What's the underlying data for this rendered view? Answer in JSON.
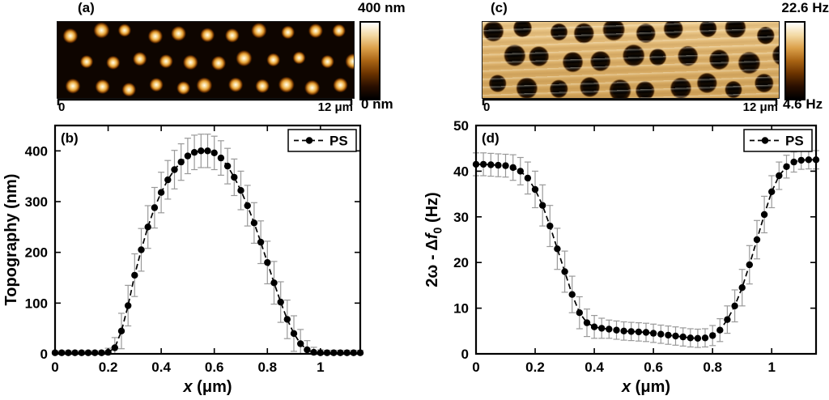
{
  "figure": {
    "panels": {
      "a": {
        "label": "(a)",
        "colorbar_max": "400 nm",
        "colorbar_min": "0 nm",
        "scale_start": "0",
        "scale_end": "12 μm",
        "image_description": "AFM topography image: bright circular PS domes on dark background, quasi-hexagonal array"
      },
      "c": {
        "label": "(c)",
        "colorbar_max": "22.6 Hz",
        "colorbar_min": "4.6 Hz",
        "scale_start": "0",
        "scale_end": "12 μm",
        "image_description": "AFM frequency-shift image: dark circular domains on bright background, quasi-hexagonal array"
      }
    },
    "colormap": [
      "#000000",
      "#2a0f00",
      "#6b3300",
      "#a96414",
      "#dba04a",
      "#f3d9a4",
      "#ffffff"
    ]
  },
  "chart_data": [
    {
      "id": "b",
      "type": "line",
      "panel_label": "(b)",
      "title": "",
      "xlabel_segments": [
        {
          "t": "x",
          "italic": true
        },
        {
          "t": " (μm)"
        }
      ],
      "ylabel_segments": [
        {
          "t": "Topography (nm)"
        }
      ],
      "xlim": [
        0,
        1.15
      ],
      "ylim": [
        0,
        450
      ],
      "xticks": [
        0,
        0.2,
        0.4,
        0.6,
        0.8,
        1
      ],
      "xtick_labels": [
        "0",
        "0.2",
        "0.4",
        "0.6",
        "0.8",
        "1"
      ],
      "yticks": [
        0,
        100,
        200,
        300,
        400
      ],
      "ytick_labels": [
        "0",
        "100",
        "200",
        "300",
        "400"
      ],
      "grid": false,
      "legend": {
        "label": "PS",
        "marker": "filled-circle",
        "line": "dashed",
        "position": "top-right"
      },
      "series": [
        {
          "name": "PS",
          "x": [
            0,
            0.025,
            0.05,
            0.075,
            0.1,
            0.125,
            0.15,
            0.175,
            0.2,
            0.225,
            0.25,
            0.275,
            0.3,
            0.325,
            0.35,
            0.375,
            0.4,
            0.425,
            0.45,
            0.475,
            0.5,
            0.525,
            0.55,
            0.575,
            0.6,
            0.625,
            0.65,
            0.675,
            0.7,
            0.725,
            0.75,
            0.775,
            0.8,
            0.825,
            0.85,
            0.875,
            0.9,
            0.925,
            0.95,
            0.975,
            1,
            1.025,
            1.05,
            1.075,
            1.1,
            1.125,
            1.15
          ],
          "y": [
            2,
            2,
            2,
            2,
            2,
            2,
            2,
            2,
            3,
            12,
            45,
            95,
            155,
            205,
            250,
            288,
            318,
            343,
            363,
            378,
            390,
            397,
            400,
            400,
            396,
            386,
            370,
            348,
            322,
            292,
            258,
            220,
            180,
            140,
            102,
            68,
            40,
            20,
            8,
            3,
            2,
            2,
            2,
            2,
            2,
            2,
            2
          ],
          "yerr": [
            4,
            4,
            4,
            4,
            4,
            4,
            4,
            4,
            8,
            20,
            35,
            40,
            42,
            42,
            42,
            40,
            40,
            38,
            38,
            36,
            35,
            34,
            33,
            33,
            33,
            34,
            35,
            36,
            38,
            40,
            40,
            42,
            42,
            42,
            40,
            38,
            35,
            28,
            18,
            10,
            6,
            5,
            5,
            5,
            5,
            5,
            5
          ]
        }
      ]
    },
    {
      "id": "d",
      "type": "line",
      "panel_label": "(d)",
      "title": "",
      "xlabel_segments": [
        {
          "t": "x",
          "italic": true
        },
        {
          "t": " (μm)"
        }
      ],
      "ylabel_segments": [
        {
          "t": "2ω - Δ"
        },
        {
          "t": "f",
          "italic": true
        },
        {
          "t": "0",
          "sub": true
        },
        {
          "t": " (Hz)"
        }
      ],
      "xlim": [
        0,
        1.15
      ],
      "ylim": [
        0,
        50
      ],
      "xticks": [
        0,
        0.2,
        0.4,
        0.6,
        0.8,
        1
      ],
      "xtick_labels": [
        "0",
        "0.2",
        "0.4",
        "0.6",
        "0.8",
        "1"
      ],
      "yticks": [
        0,
        10,
        20,
        30,
        40,
        50
      ],
      "ytick_labels": [
        "0",
        "10",
        "20",
        "30",
        "40",
        "50"
      ],
      "grid": false,
      "legend": {
        "label": "PS",
        "marker": "filled-circle",
        "line": "dashed",
        "position": "top-right"
      },
      "series": [
        {
          "name": "PS",
          "x": [
            0,
            0.025,
            0.05,
            0.075,
            0.1,
            0.125,
            0.15,
            0.175,
            0.2,
            0.225,
            0.25,
            0.275,
            0.3,
            0.325,
            0.35,
            0.375,
            0.4,
            0.425,
            0.45,
            0.475,
            0.5,
            0.525,
            0.55,
            0.575,
            0.6,
            0.625,
            0.65,
            0.675,
            0.7,
            0.725,
            0.75,
            0.775,
            0.8,
            0.825,
            0.85,
            0.875,
            0.9,
            0.925,
            0.95,
            0.975,
            1,
            1.025,
            1.05,
            1.075,
            1.1,
            1.125,
            1.15
          ],
          "y": [
            41.5,
            41.5,
            41.4,
            41.3,
            41.2,
            40.8,
            40,
            38.5,
            36,
            32.5,
            28,
            23,
            18,
            13,
            9,
            6.8,
            5.9,
            5.6,
            5.4,
            5.2,
            5,
            4.9,
            4.8,
            4.7,
            4.5,
            4.3,
            4.1,
            3.9,
            3.7,
            3.5,
            3.4,
            3.5,
            4,
            5.2,
            7.5,
            10.5,
            14.5,
            19.5,
            25,
            30.5,
            35.5,
            39,
            41,
            42,
            42.4,
            42.5,
            42.5
          ],
          "yerr": [
            2.5,
            2.5,
            2.5,
            2.5,
            2.5,
            2.8,
            3,
            3.5,
            4,
            4.5,
            4.5,
            4.5,
            4.5,
            4,
            3.5,
            3,
            2.5,
            2.2,
            2,
            2,
            2,
            2,
            2,
            2,
            2,
            2,
            2,
            2,
            2,
            2,
            2,
            2,
            2.2,
            2.5,
            3,
            3.5,
            4,
            4.2,
            4.2,
            4,
            3.5,
            3,
            2.5,
            2.2,
            2,
            2,
            2
          ]
        }
      ]
    }
  ]
}
